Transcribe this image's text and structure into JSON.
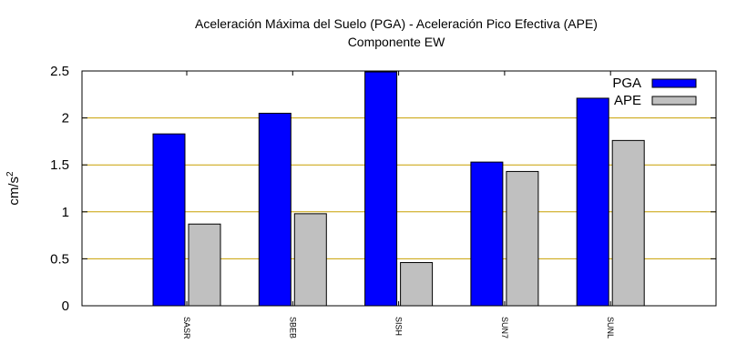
{
  "chart_data": {
    "type": "bar",
    "title": "Aceleración Máxima del Suelo (PGA) -  Aceleración Pico Efectiva (APE)",
    "subtitle": "Componente EW",
    "xlabel": "",
    "ylabel": "cm/s",
    "ylabel_superscript": "2",
    "ylim": [
      0,
      2.5
    ],
    "yticks": [
      "0",
      "0.5",
      "1",
      "1.5",
      "2",
      "2.5"
    ],
    "ytick_values": [
      0,
      0.5,
      1,
      1.5,
      2,
      2.5
    ],
    "categories": [
      "SASR",
      "SBEB",
      "SISH",
      "SUN7",
      "SUNL"
    ],
    "series": [
      {
        "name": "PGA",
        "color": "#0000ff",
        "values": [
          1.83,
          2.05,
          2.49,
          1.53,
          2.21
        ]
      },
      {
        "name": "APE",
        "color": "#c0c0c0",
        "values": [
          0.87,
          0.98,
          0.46,
          1.43,
          1.76
        ]
      }
    ],
    "grid": "horizontal",
    "grid_color": "#c8a000",
    "legend_position": "top-right"
  }
}
